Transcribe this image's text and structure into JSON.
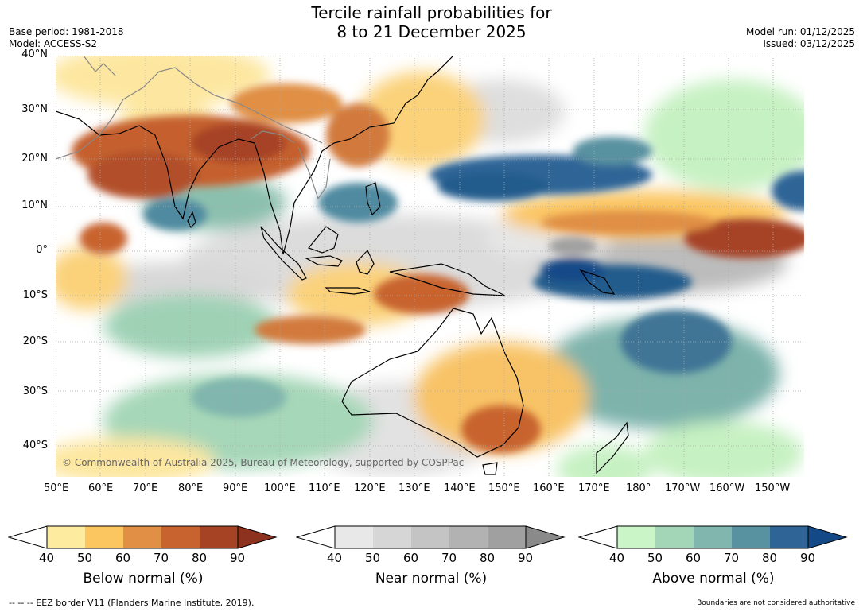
{
  "title_line1": "Tercile rainfall probabilities for",
  "title_line2": "8 to 21 December 2025",
  "base_period": "Base period: 1981-2018",
  "model": "Model: ACCESS-S2",
  "model_run": "Model run: 01/12/2025",
  "issued": "Issued: 03/12/2025",
  "copyright": "© Commonwealth of Australia 2025, Bureau of Meteorology, supported by COSPPac",
  "lat_ticks": [
    "40°N",
    "30°N",
    "20°N",
    "10°N",
    "0°",
    "10°S",
    "20°S",
    "30°S",
    "40°S"
  ],
  "lon_ticks": [
    "50°E",
    "60°E",
    "70°E",
    "80°E",
    "90°E",
    "100°E",
    "110°E",
    "120°E",
    "130°E",
    "140°E",
    "150°E",
    "160°E",
    "170°E",
    "180°",
    "170°W",
    "160°W",
    "150°W"
  ],
  "colorbars": [
    {
      "label": "Below normal (%)",
      "ticks": [
        "40",
        "50",
        "60",
        "70",
        "80",
        "90"
      ],
      "colors": [
        "#fdeba0",
        "#fbc560",
        "#e08f44",
        "#c8632f",
        "#a64325"
      ],
      "extend_color": "#8c321e"
    },
    {
      "label": "Near normal (%)",
      "ticks": [
        "40",
        "50",
        "60",
        "70",
        "80",
        "90"
      ],
      "colors": [
        "#e8e8e8",
        "#d6d6d6",
        "#c4c4c4",
        "#b2b2b2",
        "#a0a0a0"
      ],
      "extend_color": "#8a8a8a"
    },
    {
      "label": "Above normal (%)",
      "ticks": [
        "40",
        "50",
        "60",
        "70",
        "80",
        "90"
      ],
      "colors": [
        "#caf5c6",
        "#a3d6b7",
        "#80b6ad",
        "#5891a0",
        "#2f6596"
      ],
      "extend_color": "#134987"
    }
  ],
  "footer_left": "--  --  -- EEZ border V11 (Flanders Marine Institute, 2019).",
  "footer_right": "Boundaries are not considered authoritative"
}
